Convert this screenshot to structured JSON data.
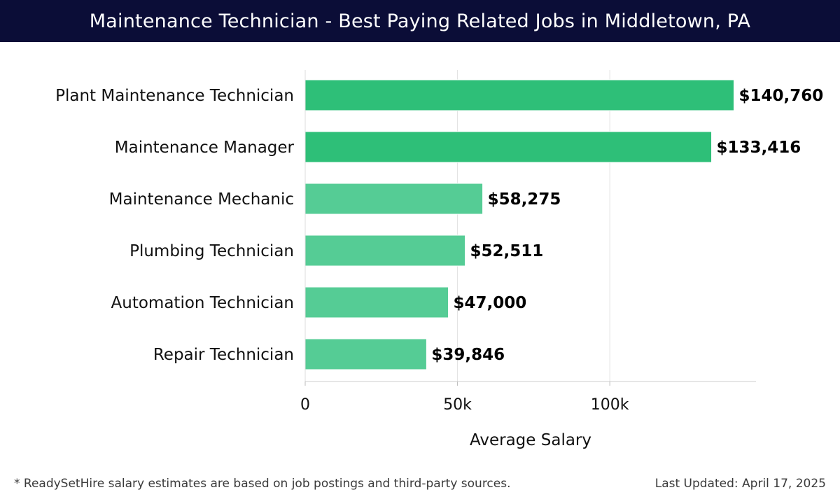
{
  "header": {
    "title": "Maintenance Technician - Best Paying Related Jobs in Middletown, PA"
  },
  "footer": {
    "note": "* ReadySetHire salary estimates are based on job postings and third-party sources.",
    "updated_label": "Last Updated:",
    "updated_date": "April 17, 2025"
  },
  "colors": {
    "header_bg": "#0b0d37",
    "bar_dark": "#2ebf78",
    "bar_light": "#55cc95",
    "grid": "#e3e3e3"
  },
  "chart_data": {
    "type": "bar",
    "orientation": "horizontal",
    "title": "Maintenance Technician - Best Paying Related Jobs in Middletown, PA",
    "xlabel": "Average Salary",
    "ylabel": "",
    "categories": [
      "Plant Maintenance Technician",
      "Maintenance Manager",
      "Maintenance Mechanic",
      "Plumbing Technician",
      "Automation Technician",
      "Repair Technician"
    ],
    "values": [
      140760,
      133416,
      58275,
      52511,
      47000,
      39846
    ],
    "value_labels": [
      "$140,760",
      "$133,416",
      "$58,275",
      "$52,511",
      "$47,000",
      "$39,846"
    ],
    "highlight": [
      true,
      true,
      false,
      false,
      false,
      false
    ],
    "xlim": [
      0,
      148000
    ],
    "xticks": [
      0,
      50000,
      100000
    ],
    "xtick_labels": [
      "0",
      "50k",
      "100k"
    ],
    "grid": true
  }
}
